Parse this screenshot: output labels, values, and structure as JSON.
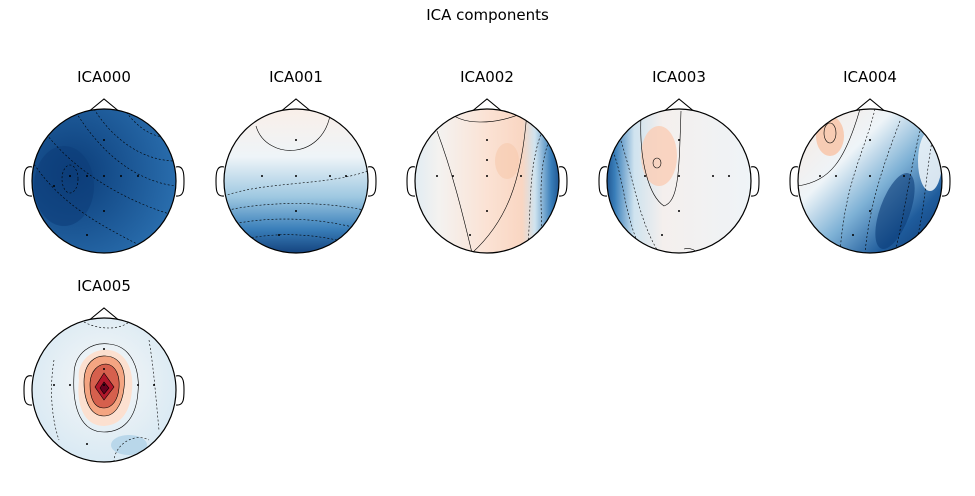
{
  "figure": {
    "title": "ICA components"
  },
  "components": [
    {
      "id": "ICA000",
      "label": "ICA000"
    },
    {
      "id": "ICA001",
      "label": "ICA001"
    },
    {
      "id": "ICA002",
      "label": "ICA002"
    },
    {
      "id": "ICA003",
      "label": "ICA003"
    },
    {
      "id": "ICA004",
      "label": "ICA004"
    },
    {
      "id": "ICA005",
      "label": "ICA005"
    }
  ],
  "colors": {
    "strong_blue": "#08306b",
    "mid_blue": "#2166ac",
    "light_blue": "#d1e5f0",
    "neutral": "#f7f7f7",
    "light_red": "#fddbc7",
    "mid_red": "#d6604d",
    "strong_red": "#67001f",
    "outline": "#000000"
  }
}
